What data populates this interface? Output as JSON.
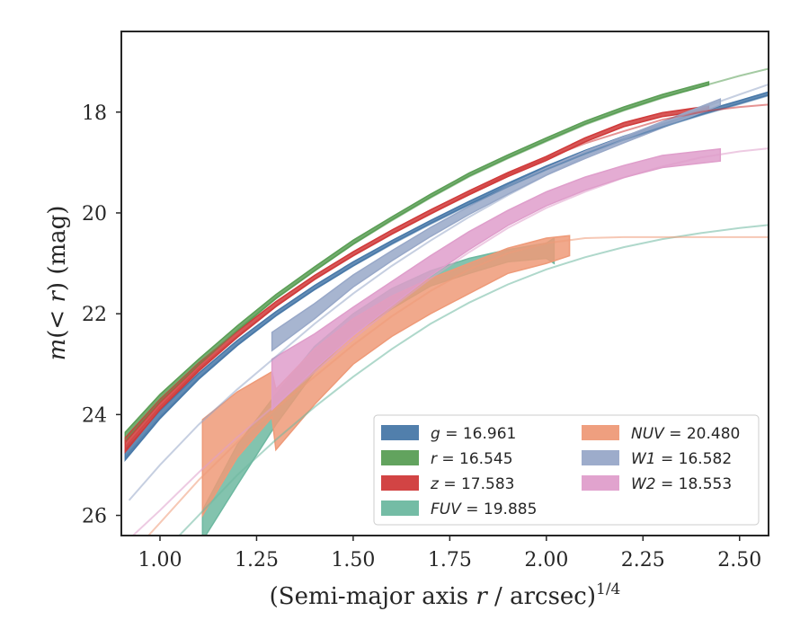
{
  "chart_data": {
    "type": "line",
    "xlabel_main": "(Semi-major axis ",
    "xlabel_var": "r",
    "xlabel_tail": " / arcsec)",
    "xlabel_sup": "1/4",
    "ylabel_pre": "m",
    "ylabel_mid": "(< ",
    "ylabel_var": "r",
    "ylabel_post": ") (mag)",
    "xlim": [
      0.9,
      2.575
    ],
    "ylim": [
      26.4,
      16.4
    ],
    "y_inverted": true,
    "xticks": [
      1.0,
      1.25,
      1.5,
      1.75,
      2.0,
      2.25,
      2.5
    ],
    "xtick_labels": [
      "1.00",
      "1.25",
      "1.50",
      "1.75",
      "2.00",
      "2.25",
      "2.50"
    ],
    "yticks": [
      18,
      20,
      22,
      24,
      26
    ],
    "ytick_labels": [
      "18",
      "20",
      "22",
      "24",
      "26"
    ],
    "grid": false,
    "legend_position": "lower right",
    "legend_columns": 2,
    "series": [
      {
        "name": "g = 16.961",
        "var": "g",
        "value": "16.961",
        "color": "#4878a8",
        "model_x": [
          0.91,
          1.0,
          1.1,
          1.2,
          1.3,
          1.4,
          1.5,
          1.6,
          1.7,
          1.8,
          1.9,
          2.0,
          2.1,
          2.2,
          2.3,
          2.4,
          2.5,
          2.575
        ],
        "model_y": [
          24.85,
          24.05,
          23.28,
          22.62,
          22.04,
          21.52,
          21.05,
          20.62,
          20.22,
          19.84,
          19.48,
          19.14,
          18.83,
          18.55,
          18.3,
          18.06,
          17.84,
          17.67
        ],
        "profile_x": [
          0.91,
          1.0,
          1.1,
          1.2,
          1.3,
          1.4,
          1.5,
          1.6,
          1.7,
          1.8,
          1.9,
          2.0,
          2.1,
          2.2,
          2.3,
          2.4,
          2.5,
          2.575
        ],
        "profile_y": [
          24.8,
          24.0,
          23.24,
          22.58,
          22.0,
          21.48,
          21.01,
          20.58,
          20.18,
          19.8,
          19.44,
          19.1,
          18.79,
          18.51,
          18.26,
          18.02,
          17.8,
          17.63
        ],
        "profile_err": [
          0.1,
          0.08,
          0.06,
          0.05,
          0.04,
          0.04,
          0.04,
          0.03,
          0.03,
          0.03,
          0.03,
          0.03,
          0.03,
          0.03,
          0.03,
          0.03,
          0.03,
          0.03
        ]
      },
      {
        "name": "r = 16.545",
        "var": "r",
        "value": "16.545",
        "color": "#5a9e55",
        "model_x": [
          0.91,
          1.0,
          1.1,
          1.2,
          1.3,
          1.4,
          1.5,
          1.6,
          1.7,
          1.8,
          1.9,
          2.0,
          2.1,
          2.2,
          2.3,
          2.42,
          2.5,
          2.575
        ],
        "model_y": [
          24.5,
          23.72,
          23.0,
          22.33,
          21.7,
          21.15,
          20.62,
          20.15,
          19.7,
          19.28,
          18.92,
          18.58,
          18.25,
          17.97,
          17.72,
          17.45,
          17.28,
          17.14
        ],
        "profile_x": [
          0.91,
          1.0,
          1.1,
          1.2,
          1.3,
          1.4,
          1.5,
          1.6,
          1.7,
          1.8,
          1.9,
          2.0,
          2.1,
          2.2,
          2.3,
          2.42
        ],
        "profile_y": [
          24.45,
          23.68,
          22.96,
          22.29,
          21.66,
          21.11,
          20.58,
          20.11,
          19.66,
          19.24,
          18.88,
          18.54,
          18.21,
          17.93,
          17.68,
          17.43
        ],
        "profile_err": [
          0.1,
          0.08,
          0.06,
          0.05,
          0.04,
          0.04,
          0.04,
          0.03,
          0.03,
          0.03,
          0.03,
          0.03,
          0.03,
          0.03,
          0.03,
          0.03
        ]
      },
      {
        "name": "z = 17.583",
        "var": "z",
        "value": "17.583",
        "color": "#d03a3a",
        "model_x": [
          0.91,
          1.0,
          1.1,
          1.2,
          1.3,
          1.4,
          1.5,
          1.6,
          1.7,
          1.8,
          1.9,
          2.0,
          2.1,
          2.2,
          2.3,
          2.42,
          2.5,
          2.575
        ],
        "model_y": [
          24.65,
          23.85,
          23.1,
          22.45,
          21.85,
          21.32,
          20.85,
          20.42,
          20.02,
          19.62,
          19.24,
          18.92,
          18.62,
          18.38,
          18.15,
          17.97,
          17.9,
          17.85
        ],
        "profile_x": [
          0.91,
          1.0,
          1.1,
          1.2,
          1.3,
          1.4,
          1.5,
          1.6,
          1.7,
          1.8,
          1.9,
          2.0,
          2.1,
          2.2,
          2.3,
          2.42
        ],
        "profile_y": [
          24.6,
          23.8,
          23.06,
          22.41,
          21.81,
          21.28,
          20.81,
          20.38,
          19.98,
          19.6,
          19.24,
          18.92,
          18.55,
          18.25,
          18.05,
          17.92
        ],
        "profile_err": [
          0.14,
          0.1,
          0.08,
          0.06,
          0.05,
          0.04,
          0.04,
          0.04,
          0.04,
          0.04,
          0.04,
          0.04,
          0.04,
          0.04,
          0.04,
          0.04
        ]
      },
      {
        "name": "FUV = 19.885",
        "var": "FUV",
        "value": "19.885",
        "color": "#6db8a0",
        "model_x": [
          1.05,
          1.1,
          1.2,
          1.3,
          1.4,
          1.5,
          1.6,
          1.7,
          1.8,
          1.9,
          2.0,
          2.1,
          2.2,
          2.3,
          2.4,
          2.5,
          2.575
        ],
        "model_y": [
          26.4,
          26.0,
          25.2,
          24.5,
          23.85,
          23.25,
          22.7,
          22.2,
          21.78,
          21.42,
          21.12,
          20.88,
          20.68,
          20.52,
          20.4,
          20.3,
          20.24
        ],
        "profile_x": [
          1.11,
          1.2,
          1.3,
          1.4,
          1.5,
          1.6,
          1.7,
          1.8,
          1.9,
          2.0,
          2.02
        ],
        "profile_y": [
          26.2,
          25.0,
          23.9,
          22.9,
          22.2,
          21.7,
          21.3,
          21.05,
          20.85,
          20.75,
          20.75
        ],
        "profile_err": [
          0.3,
          0.4,
          0.3,
          0.25,
          0.2,
          0.2,
          0.15,
          0.15,
          0.12,
          0.15,
          0.25
        ]
      },
      {
        "name": "NUV = 20.480",
        "var": "NUV",
        "value": "20.480",
        "color": "#ee9a78",
        "model_x": [
          0.97,
          1.0,
          1.1,
          1.2,
          1.3,
          1.4,
          1.5,
          1.6,
          1.7,
          1.8,
          1.9,
          2.0,
          2.1,
          2.2,
          2.3,
          2.4,
          2.575
        ],
        "model_y": [
          26.4,
          26.15,
          25.3,
          24.55,
          23.88,
          23.25,
          22.62,
          22.05,
          21.55,
          21.12,
          20.8,
          20.6,
          20.5,
          20.48,
          20.48,
          20.48,
          20.48
        ],
        "profile_x": [
          1.11,
          1.2,
          1.29,
          1.3,
          1.4,
          1.5,
          1.6,
          1.7,
          1.8,
          1.9,
          2.0,
          2.06
        ],
        "profile_y": [
          25.05,
          24.2,
          23.6,
          24.1,
          23.25,
          22.55,
          22.05,
          21.65,
          21.3,
          20.95,
          20.75,
          20.65
        ],
        "profile_err": [
          0.95,
          0.65,
          0.45,
          0.6,
          0.55,
          0.45,
          0.4,
          0.35,
          0.3,
          0.25,
          0.25,
          0.2
        ]
      },
      {
        "name": "W1 = 16.582",
        "var": "W1",
        "value": "16.582",
        "color": "#98a8c8",
        "model_x": [
          0.92,
          1.0,
          1.1,
          1.2,
          1.3,
          1.4,
          1.5,
          1.6,
          1.7,
          1.8,
          1.9,
          2.0,
          2.1,
          2.2,
          2.3,
          2.4,
          2.5,
          2.575
        ],
        "model_y": [
          25.7,
          25.0,
          24.2,
          23.5,
          22.85,
          22.2,
          21.6,
          21.05,
          20.55,
          20.08,
          19.65,
          19.25,
          18.88,
          18.55,
          18.22,
          17.92,
          17.65,
          17.45
        ],
        "profile_x": [
          1.29,
          1.4,
          1.5,
          1.6,
          1.7,
          1.8,
          1.9,
          2.0,
          2.1,
          2.2,
          2.3,
          2.4,
          2.45
        ],
        "profile_y": [
          22.55,
          21.95,
          21.35,
          20.85,
          20.38,
          19.95,
          19.55,
          19.18,
          18.85,
          18.55,
          18.25,
          17.95,
          17.8
        ],
        "profile_err": [
          0.18,
          0.15,
          0.12,
          0.1,
          0.09,
          0.08,
          0.08,
          0.07,
          0.07,
          0.06,
          0.06,
          0.06,
          0.06
        ]
      },
      {
        "name": "W2 = 18.553",
        "var": "W2",
        "value": "18.553",
        "color": "#df9ecb",
        "model_x": [
          0.93,
          1.0,
          1.1,
          1.2,
          1.3,
          1.4,
          1.5,
          1.6,
          1.7,
          1.8,
          1.9,
          2.0,
          2.1,
          2.2,
          2.3,
          2.4,
          2.5,
          2.575
        ],
        "model_y": [
          26.4,
          25.9,
          25.15,
          24.45,
          23.8,
          23.15,
          22.5,
          21.88,
          21.3,
          20.78,
          20.3,
          19.9,
          19.58,
          19.3,
          19.08,
          18.9,
          18.78,
          18.72
        ],
        "profile_x": [
          1.29,
          1.4,
          1.5,
          1.6,
          1.7,
          1.8,
          1.9,
          2.0,
          2.1,
          2.2,
          2.3,
          2.45
        ],
        "profile_y": [
          23.4,
          22.75,
          22.15,
          21.6,
          21.05,
          20.55,
          20.1,
          19.72,
          19.42,
          19.18,
          18.98,
          18.85
        ],
        "profile_err": [
          0.5,
          0.35,
          0.28,
          0.24,
          0.2,
          0.18,
          0.15,
          0.14,
          0.13,
          0.12,
          0.12,
          0.12
        ]
      }
    ]
  }
}
